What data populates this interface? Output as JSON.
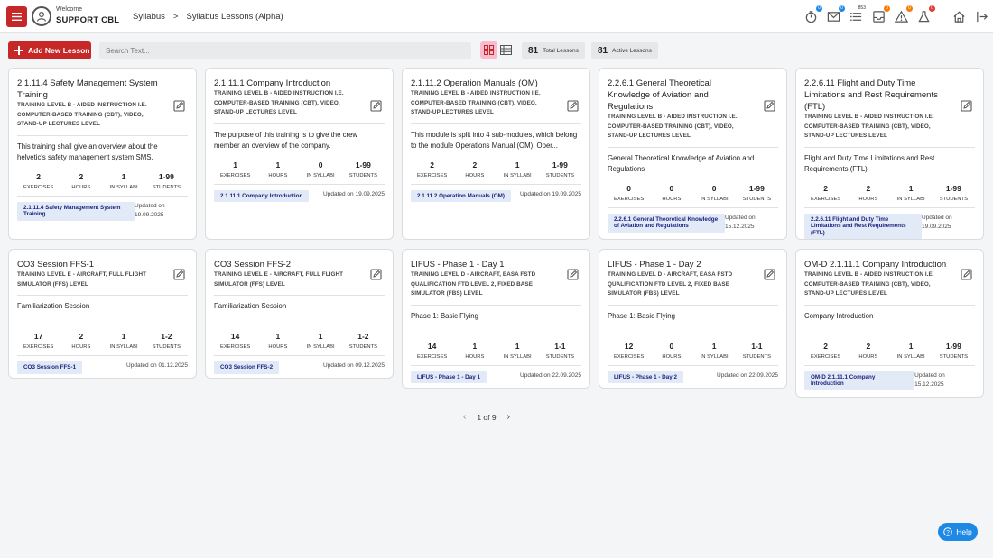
{
  "header": {
    "welcome": "Welcome",
    "org": "SUPPORT CBL",
    "breadcrumb": [
      "Syllabus",
      ">",
      "Syllabus Lessons (Alpha)"
    ],
    "icons": [
      {
        "name": "timer-icon",
        "badge": "0",
        "badge_color": "blue"
      },
      {
        "name": "mail-icon",
        "badge": "0",
        "badge_color": "blue"
      },
      {
        "name": "list-icon",
        "badge": "853",
        "badge_color": "plain"
      },
      {
        "name": "inbox-icon",
        "badge": "0",
        "badge_color": "orange"
      },
      {
        "name": "warning-icon",
        "badge": "0",
        "badge_color": "orange"
      },
      {
        "name": "flask-icon",
        "badge": "0",
        "badge_color": "red"
      },
      {
        "name": "home-icon",
        "badge": "",
        "badge_color": ""
      },
      {
        "name": "logout-icon",
        "badge": "",
        "badge_color": ""
      }
    ]
  },
  "toolbar": {
    "add_label": "Add New Lesson",
    "search_placeholder": "Search Text...",
    "total_lessons_num": "81",
    "total_lessons_label": "Total Lessons",
    "active_lessons_num": "81",
    "active_lessons_label": "Active Lessons"
  },
  "colors": {
    "accent": "#c62828",
    "tag_bg": "#e3eaf7",
    "tag_text": "#1a237e",
    "help": "#1e88e5"
  },
  "cards": [
    {
      "title": "2.1.11.4 Safety Management System Training",
      "level": "TRAINING LEVEL B - AIDED INSTRUCTION I.E. COMPUTER-BASED TRAINING (CBT), VIDEO, STAND-UP LECTURES LEVEL",
      "desc": "This training shall give an overview about the helvetic's safety management system SMS.",
      "exercises": "2",
      "hours": "2",
      "syllabi": "1",
      "students": "1-99",
      "tag": "2.1.11.4 Safety Management System Training",
      "updated": "Updated on 19.09.2025"
    },
    {
      "title": "2.1.11.1 Company Introduction",
      "level": "TRAINING LEVEL B - AIDED INSTRUCTION I.E. COMPUTER-BASED TRAINING (CBT), VIDEO, STAND-UP LECTURES LEVEL",
      "desc": "The purpose of this training is to give the crew member an overview of the company.",
      "exercises": "1",
      "hours": "1",
      "syllabi": "0",
      "students": "1-99",
      "tag": "2.1.11.1 Company Introduction",
      "updated": "Updated on 19.09.2025"
    },
    {
      "title": "2.1.11.2 Operation Manuals (OM)",
      "level": "TRAINING LEVEL B - AIDED INSTRUCTION I.E. COMPUTER-BASED TRAINING (CBT), VIDEO, STAND-UP LECTURES LEVEL",
      "desc": "This module is split into 4 sub-modules, which belong to the module Operations Manual (OM). Oper...",
      "exercises": "2",
      "hours": "2",
      "syllabi": "1",
      "students": "1-99",
      "tag": "2.1.11.2 Operation Manuals (OM)",
      "updated": "Updated on 19.09.2025"
    },
    {
      "title": "2.2.6.1 General Theoretical Knowledge of Aviation and Regulations",
      "level": "TRAINING LEVEL B - AIDED INSTRUCTION I.E. COMPUTER-BASED TRAINING (CBT), VIDEO, STAND-UP LECTURES LEVEL",
      "desc": "General Theoretical Knowledge of Aviation and Regulations",
      "exercises": "0",
      "hours": "0",
      "syllabi": "0",
      "students": "1-99",
      "tag": "2.2.6.1 General Theoretical Knowledge of Aviation and Regulations",
      "updated": "Updated on 15.12.2025"
    },
    {
      "title": "2.2.6.11 Flight and Duty Time Limitations and Rest Requirements (FTL)",
      "level": "TRAINING LEVEL B - AIDED INSTRUCTION I.E. COMPUTER-BASED TRAINING (CBT), VIDEO, STAND-UP LECTURES LEVEL",
      "desc": "Flight and Duty Time Limitations and Rest Requirements (FTL)",
      "exercises": "2",
      "hours": "2",
      "syllabi": "1",
      "students": "1-99",
      "tag": "2.2.6.11 Flight and Duty Time Limitations and Rest Requirements (FTL)",
      "updated": "Updated on 19.09.2025"
    },
    {
      "title": "CO3 Session FFS-1",
      "level": "TRAINING LEVEL E - AIRCRAFT, FULL FLIGHT SIMULATOR (FFS) LEVEL",
      "desc": "Familiarization Session",
      "exercises": "17",
      "hours": "2",
      "syllabi": "1",
      "students": "1-2",
      "tag": "CO3 Session FFS-1",
      "updated": "Updated on 01.12.2025"
    },
    {
      "title": "CO3 Session FFS-2",
      "level": "TRAINING LEVEL E - AIRCRAFT, FULL FLIGHT SIMULATOR (FFS) LEVEL",
      "desc": "Familiarization Session",
      "exercises": "14",
      "hours": "1",
      "syllabi": "1",
      "students": "1-2",
      "tag": "CO3 Session FFS-2",
      "updated": "Updated on 09.12.2025"
    },
    {
      "title": "LIFUS - Phase 1 - Day 1",
      "level": "TRAINING LEVEL D - AIRCRAFT, EASA FSTD QUALIFICATION FTD LEVEL 2, FIXED BASE SIMULATOR (FBS) LEVEL",
      "desc": "Phase 1: Basic Flying",
      "exercises": "14",
      "hours": "1",
      "syllabi": "1",
      "students": "1-1",
      "tag": "LIFUS - Phase 1 - Day 1",
      "updated": "Updated on 22.09.2025"
    },
    {
      "title": "LIFUS - Phase 1 - Day 2",
      "level": "TRAINING LEVEL D - AIRCRAFT, EASA FSTD QUALIFICATION FTD LEVEL 2, FIXED BASE SIMULATOR (FBS) LEVEL",
      "desc": "Phase 1: Basic Flying",
      "exercises": "12",
      "hours": "0",
      "syllabi": "1",
      "students": "1-1",
      "tag": "LIFUS - Phase 1 - Day 2",
      "updated": "Updated on 22.09.2025"
    },
    {
      "title": "OM-D 2.1.11.1 Company Introduction",
      "level": "TRAINING LEVEL B - AIDED INSTRUCTION I.E. COMPUTER-BASED TRAINING (CBT), VIDEO, STAND-UP LECTURES LEVEL",
      "desc": "Company Introduction",
      "exercises": "2",
      "hours": "2",
      "syllabi": "1",
      "students": "1-99",
      "tag": "OM-D 2.1.11.1 Company Introduction",
      "updated": "Updated on 15.12.2025"
    }
  ],
  "metric_labels": {
    "exercises": "EXERCISES",
    "hours": "HOURS",
    "syllabi": "IN SYLLABI",
    "students": "STUDENTS"
  },
  "pagination": {
    "text": "1 of 9"
  },
  "help": {
    "label": "Help"
  }
}
